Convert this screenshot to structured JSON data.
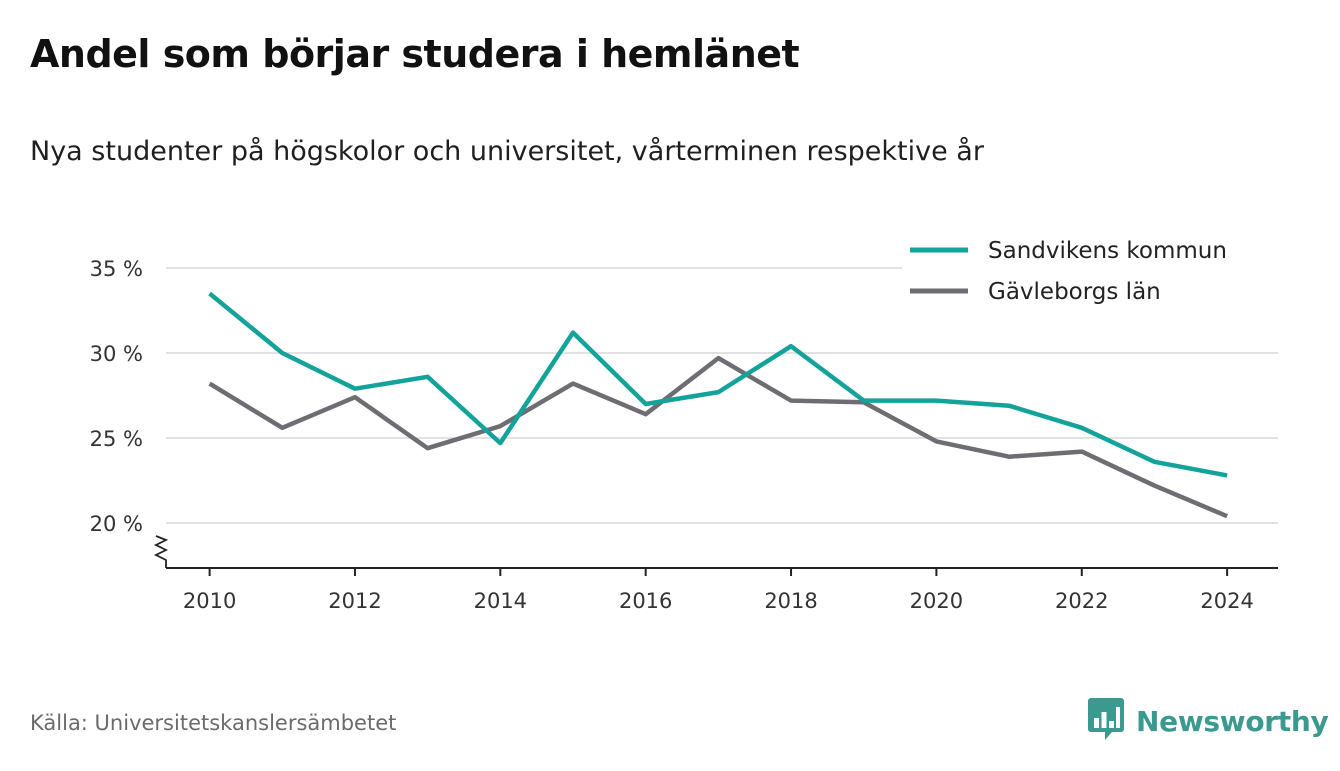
{
  "title": "Andel som börjar studera i hemlänet",
  "subtitle": "Nya studenter på högskolor och universitet, vårterminen respektive år",
  "source": "Källa: Universitetskanslersämbetet",
  "brand": {
    "name": "Newsworthy",
    "icon": "newsworthy-logo-icon",
    "color": "#3a9a8f"
  },
  "chart_data": {
    "type": "line",
    "title": "Andel som börjar studera i hemlänet",
    "subtitle": "Nya studenter på högskolor och universitet, vårterminen respektive år",
    "xlabel": "",
    "ylabel": "",
    "x": [
      2010,
      2011,
      2012,
      2013,
      2014,
      2015,
      2016,
      2017,
      2018,
      2019,
      2020,
      2021,
      2022,
      2023,
      2024
    ],
    "xticks": [
      2010,
      2012,
      2014,
      2016,
      2018,
      2020,
      2022,
      2024
    ],
    "xtick_labels": [
      "2010",
      "2012",
      "2014",
      "2016",
      "2018",
      "2020",
      "2022",
      "2024"
    ],
    "yticks": [
      20,
      25,
      30,
      35
    ],
    "ytick_labels": [
      "20 %",
      "25 %",
      "30 %",
      "35 %"
    ],
    "ylim": [
      17.4,
      35
    ],
    "xlim": [
      2009.4,
      2024.7
    ],
    "y_axis_break": true,
    "grid": "horizontal",
    "legend_position": "top-right",
    "series": [
      {
        "name": "Sandvikens kommun",
        "color": "#14a39a",
        "values": [
          33.5,
          30.0,
          27.9,
          28.6,
          24.7,
          31.2,
          27.0,
          27.7,
          30.4,
          27.2,
          27.2,
          26.9,
          25.6,
          23.6,
          22.8
        ]
      },
      {
        "name": "Gävleborgs län",
        "color": "#6e6d73",
        "values": [
          28.2,
          25.6,
          27.4,
          24.4,
          25.7,
          28.2,
          26.4,
          29.7,
          27.2,
          27.1,
          24.8,
          23.9,
          24.2,
          22.2,
          20.4
        ]
      }
    ]
  }
}
